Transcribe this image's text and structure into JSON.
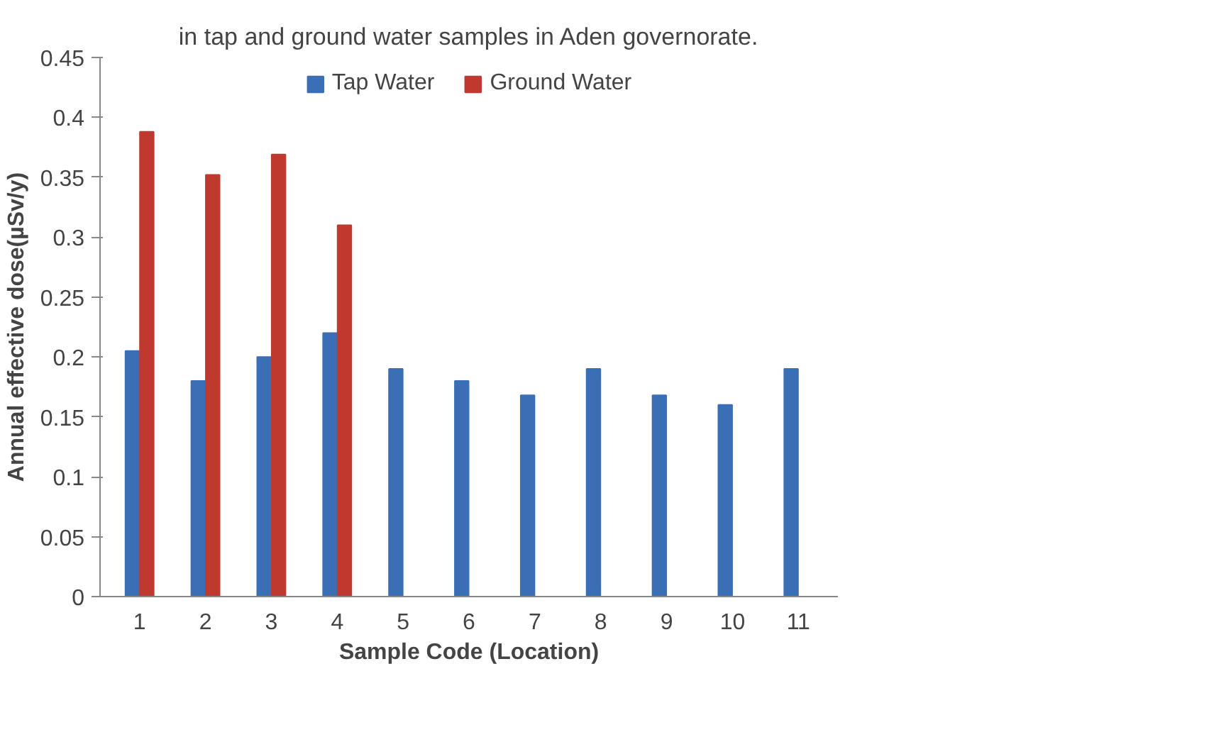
{
  "chart_data": {
    "type": "bar",
    "title": "in tap and ground water samples in Aden governorate.",
    "xlabel": "Sample Code (Location)",
    "ylabel": "Annual effective dose(µSv/y)",
    "categories": [
      "1",
      "2",
      "3",
      "4",
      "5",
      "6",
      "7",
      "8",
      "9",
      "10",
      "11"
    ],
    "series": [
      {
        "name": "Tap Water",
        "color": "#3a6fb6",
        "values": [
          0.205,
          0.18,
          0.2,
          0.22,
          0.19,
          0.18,
          0.168,
          0.19,
          0.168,
          0.16,
          0.19
        ]
      },
      {
        "name": "Ground Water",
        "color": "#c0392f",
        "values": [
          0.388,
          0.352,
          0.369,
          0.31,
          null,
          null,
          null,
          null,
          null,
          null,
          null
        ]
      }
    ],
    "ylim": [
      0,
      0.45
    ],
    "yticks": [
      0,
      0.05,
      0.1,
      0.15,
      0.2,
      0.25,
      0.3,
      0.35,
      0.4,
      0.45
    ],
    "grid": false,
    "legend": "top"
  }
}
